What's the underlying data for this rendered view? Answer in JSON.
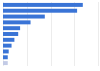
{
  "chart_data": {
    "type": "bar",
    "orientation": "horizontal",
    "categories": [
      null,
      null,
      null,
      null,
      null,
      null,
      null,
      null,
      null,
      null,
      null
    ],
    "values": [
      84,
      78,
      44,
      29,
      18,
      16,
      12,
      9,
      6,
      5,
      5
    ],
    "colors": [
      "#3a74d6",
      "#3a74d6",
      "#3a74d6",
      "#3a74d6",
      "#3a74d6",
      "#3a74d6",
      "#3a74d6",
      "#3a74d6",
      "#3a74d6",
      "#3a74d6",
      "#c3cbe6"
    ],
    "xlim": [
      0,
      100
    ],
    "xticks": [
      0,
      25,
      50,
      75,
      100
    ],
    "grid": true,
    "tick_labels": false
  }
}
